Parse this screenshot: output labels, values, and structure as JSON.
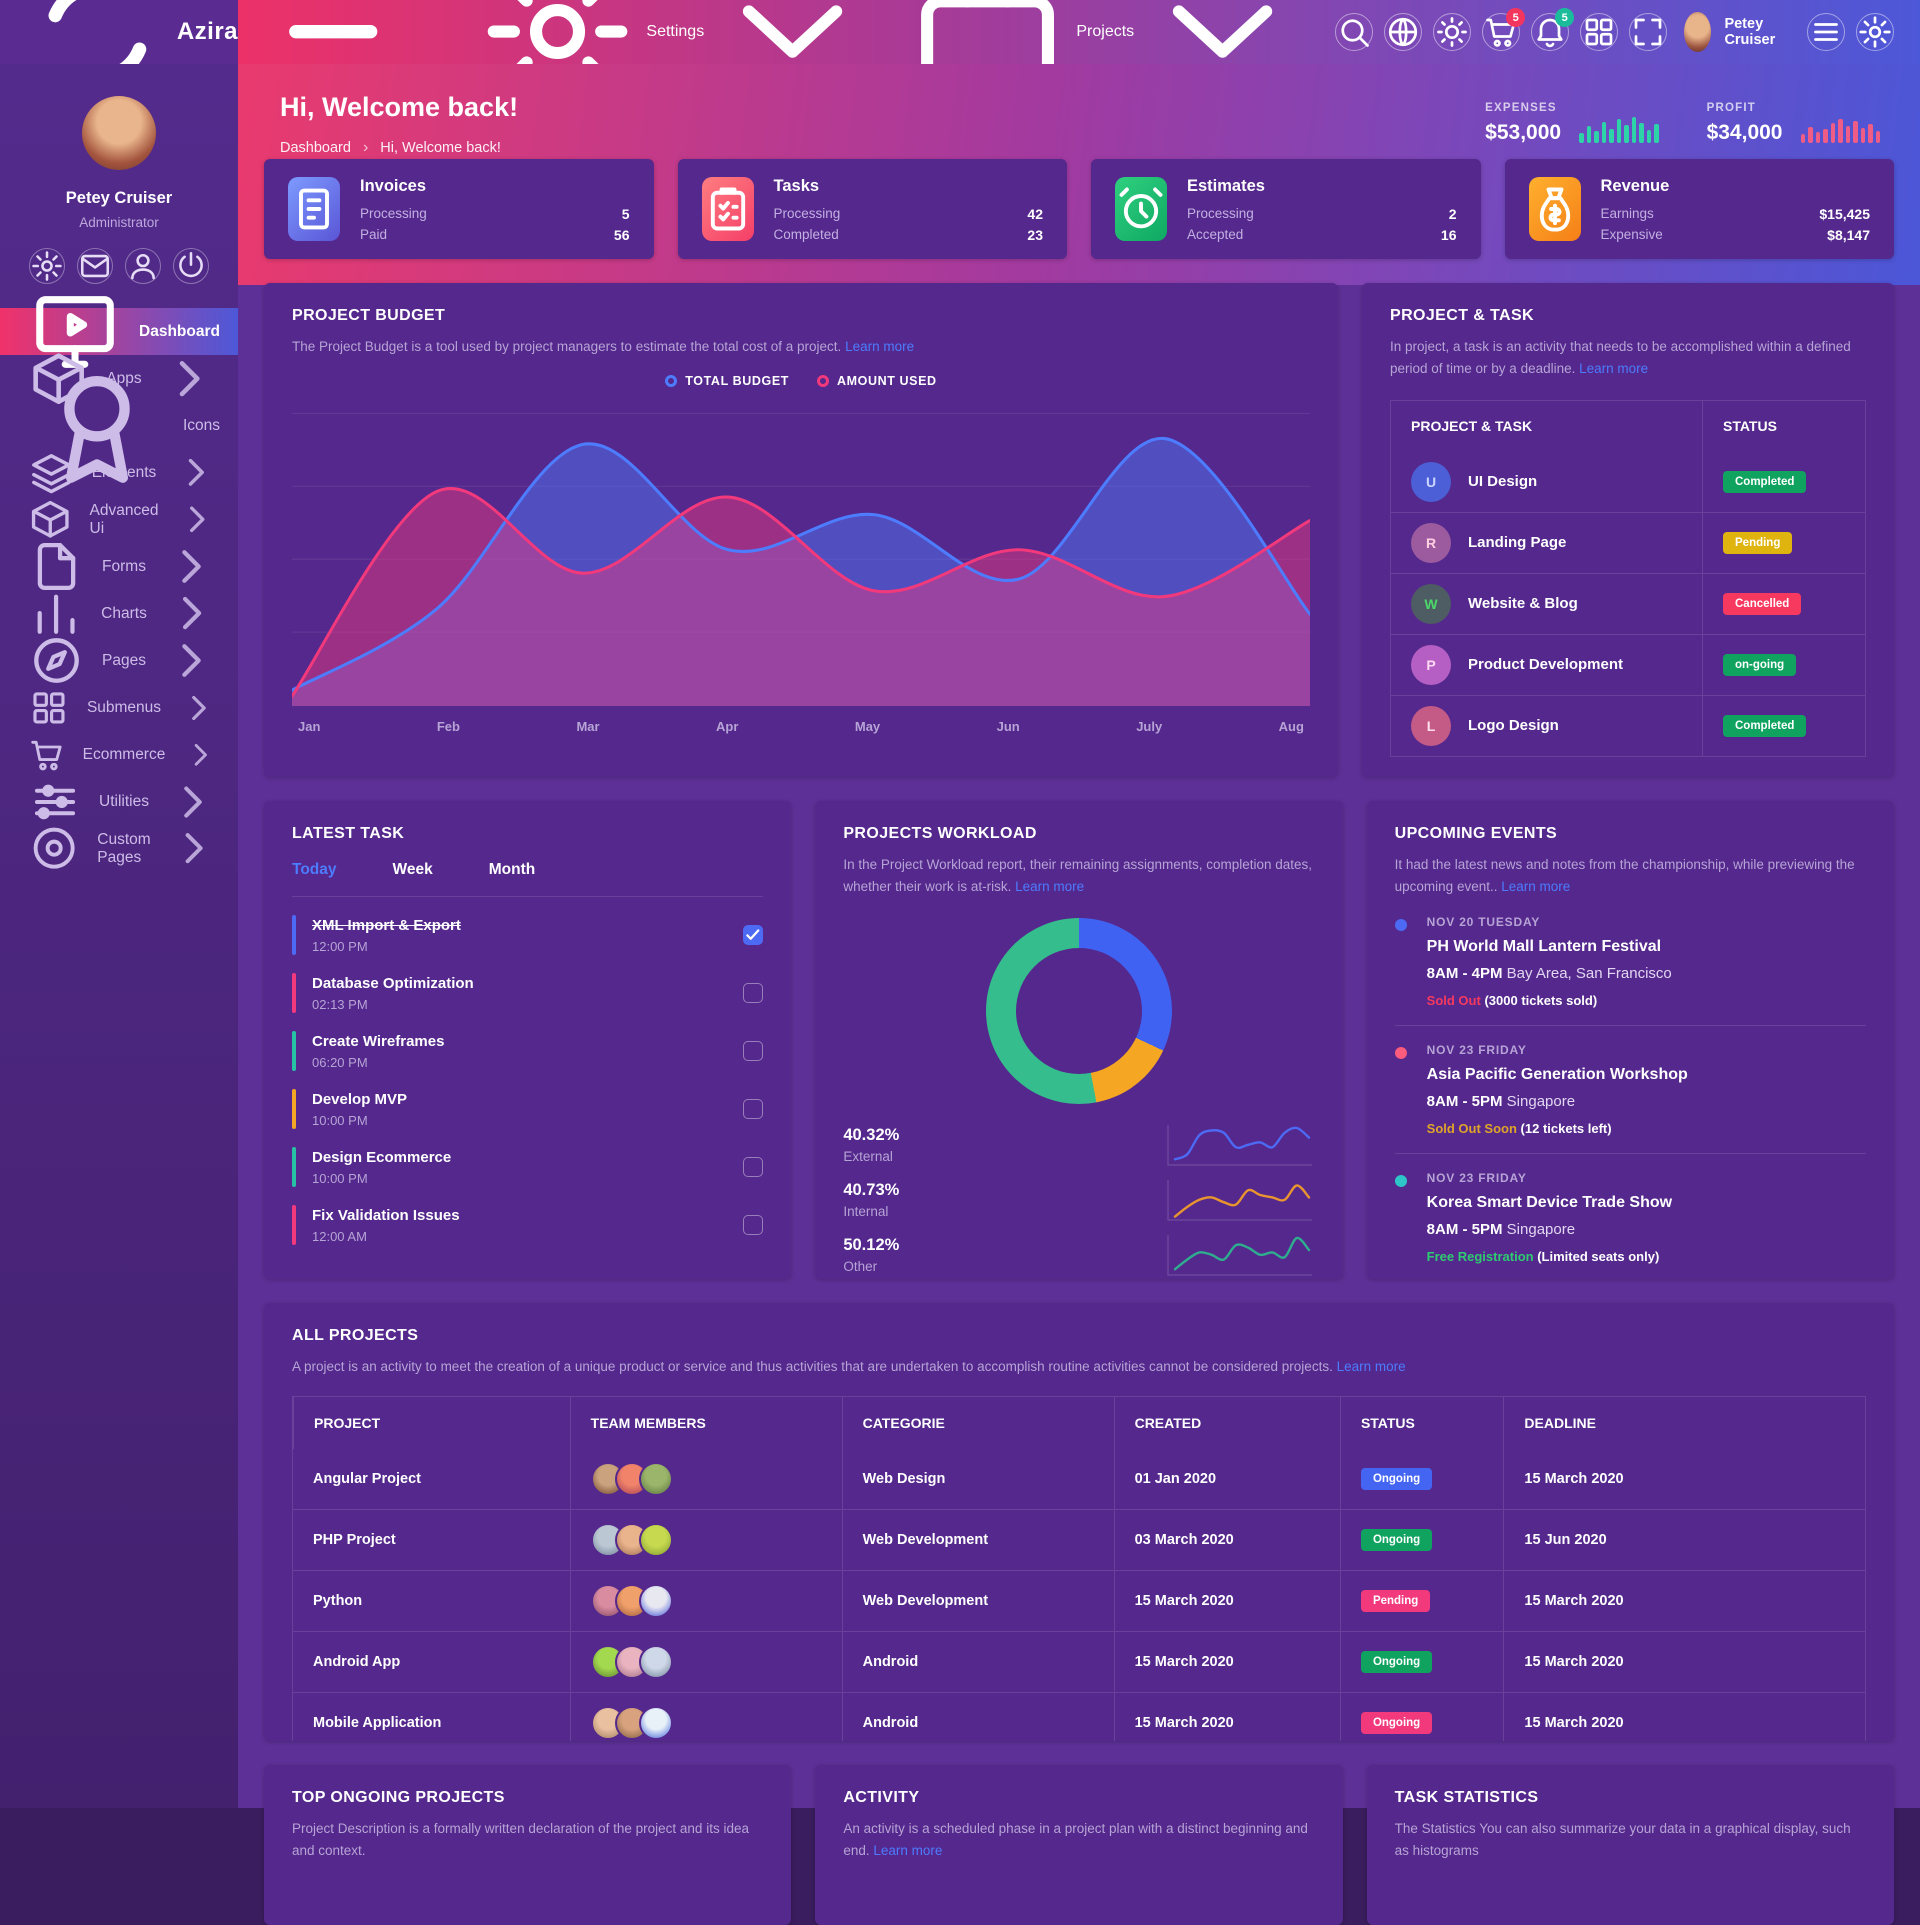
{
  "navbar": {
    "brand": "Azira",
    "menu": [
      {
        "label": "Settings",
        "icon": "gear"
      },
      {
        "label": "Projects",
        "icon": "briefcase"
      }
    ],
    "icons": [
      {
        "name": "search"
      },
      {
        "name": "globe"
      },
      {
        "name": "sun"
      },
      {
        "name": "cart",
        "badge": "5",
        "badge_color": "#f4365e"
      },
      {
        "name": "bell",
        "badge": "5",
        "badge_color": "#1abc9c"
      },
      {
        "name": "grid"
      },
      {
        "name": "fullscreen"
      }
    ],
    "user": {
      "name": "Petey Cruiser"
    },
    "trailing_icons": [
      {
        "name": "list"
      },
      {
        "name": "gear"
      }
    ]
  },
  "sidebar": {
    "profile": {
      "name": "Petey Cruiser",
      "role": "Administrator"
    },
    "quick_icons": [
      "gear",
      "mail",
      "user",
      "power"
    ],
    "items": [
      {
        "label": "Dashboard",
        "icon": "monitor",
        "active": true,
        "chevron": false
      },
      {
        "label": "Apps",
        "icon": "cube",
        "chevron": true
      },
      {
        "label": "Icons",
        "icon": "award",
        "chevron": false
      },
      {
        "label": "Elements",
        "icon": "layers",
        "chevron": true
      },
      {
        "label": "Advanced Ui",
        "icon": "cube",
        "chevron": true
      },
      {
        "label": "Forms",
        "icon": "file",
        "chevron": true
      },
      {
        "label": "Charts",
        "icon": "chart",
        "chevron": true
      },
      {
        "label": "Pages",
        "icon": "compass",
        "chevron": true
      },
      {
        "label": "Submenus",
        "icon": "grid",
        "chevron": true
      },
      {
        "label": "Ecommerce",
        "icon": "cart",
        "chevron": true
      },
      {
        "label": "Utilities",
        "icon": "sliders",
        "chevron": true
      },
      {
        "label": "Custom Pages",
        "icon": "disc",
        "chevron": true
      }
    ]
  },
  "hero": {
    "title": "Hi, Welcome back!",
    "breadcrumb": [
      "Dashboard",
      "Hi, Welcome back!"
    ],
    "breadcrumb_sep": "›",
    "stats": [
      {
        "label": "EXPENSES",
        "value": "$53,000",
        "color": "#2dd4a8",
        "bars": [
          10,
          17,
          12,
          21,
          14,
          24,
          18,
          26,
          20,
          13,
          19
        ]
      },
      {
        "label": "PROFIT",
        "value": "$34,000",
        "color": "#ef5d87",
        "bars": [
          9,
          16,
          11,
          14,
          20,
          24,
          17,
          22,
          15,
          19,
          12
        ]
      }
    ]
  },
  "stat_cards": [
    {
      "title": "Invoices",
      "icon": "invoice",
      "tile": "linear-gradient(135deg,#7d9bff,#5a55d6)",
      "row1_label": "Processing",
      "row1_value": "5",
      "row2_label": "Paid",
      "row2_value": "56"
    },
    {
      "title": "Tasks",
      "icon": "clipboard",
      "tile": "linear-gradient(135deg,#ff7d80,#f43f68)",
      "row1_label": "Processing",
      "row1_value": "42",
      "row2_label": "Completed",
      "row2_value": "23"
    },
    {
      "title": "Estimates",
      "icon": "alarm",
      "tile": "linear-gradient(135deg,#2fd07f,#0fa863)",
      "row1_label": "Processing",
      "row1_value": "2",
      "row2_label": "Accepted",
      "row2_value": "16"
    },
    {
      "title": "Revenue",
      "icon": "moneybag",
      "tile": "linear-gradient(135deg,#ffb02e,#f57f17)",
      "row1_label": "Earnings",
      "row1_value": "$15,425",
      "row2_label": "Expensive",
      "row2_value": "$8,147"
    }
  ],
  "project_budget": {
    "title": "PROJECT BUDGET",
    "desc": "The Project Budget is a tool used by project managers to estimate the total cost of a project.",
    "learn_more": "Learn more",
    "chart_data": {
      "type": "area",
      "x": [
        "Jan",
        "Feb",
        "Mar",
        "Apr",
        "May",
        "Jun",
        "July",
        "Aug"
      ],
      "series": [
        {
          "name": "TOTAL BUDGET",
          "color": "#4d7cfe",
          "values": [
            4,
            32,
            88,
            52,
            64,
            42,
            90,
            30
          ]
        },
        {
          "name": "AMOUNT USED",
          "color": "#f1397c",
          "values": [
            2,
            72,
            44,
            70,
            38,
            52,
            36,
            62
          ]
        }
      ]
    }
  },
  "project_task": {
    "title": "PROJECT & TASK",
    "desc": "In project, a task is an activity that needs to be accomplished within a defined period of time or by a deadline.",
    "learn_more": "Learn more",
    "col1": "PROJECT & TASK",
    "col2": "STATUS",
    "rows": [
      {
        "initial": "U",
        "avatar_bg": "#4c5fd6",
        "avatar_fg": "#cdd6ff",
        "name": "UI Design",
        "status": "Completed",
        "status_bg": "#10a360"
      },
      {
        "initial": "R",
        "avatar_bg": "#9c5b9e",
        "avatar_fg": "#ffd0e2",
        "name": "Landing Page",
        "status": "Pending",
        "status_bg": "#dfb40f"
      },
      {
        "initial": "W",
        "avatar_bg": "#4e5c63",
        "avatar_fg": "#4cd96a",
        "name": "Website & Blog",
        "status": "Cancelled",
        "status_bg": "#f8395f"
      },
      {
        "initial": "P",
        "avatar_bg": "#b55fc4",
        "avatar_fg": "#ffd9f2",
        "name": "Product Development",
        "status": "on-going",
        "status_bg": "#10a360"
      },
      {
        "initial": "L",
        "avatar_bg": "#c45a86",
        "avatar_fg": "#ffe0ec",
        "name": "Logo Design",
        "status": "Completed",
        "status_bg": "#10a360"
      }
    ]
  },
  "latest_task": {
    "title": "LATEST TASK",
    "tabs": [
      {
        "label": "Today",
        "active": true
      },
      {
        "label": "Week",
        "active": false
      },
      {
        "label": "Month",
        "active": false
      }
    ],
    "items": [
      {
        "name": "XML Import & Export",
        "time": "12:00 PM",
        "bar": "#4d6af5",
        "done": true
      },
      {
        "name": "Database Optimization",
        "time": "02:13 PM",
        "bar": "#f1397c",
        "done": false
      },
      {
        "name": "Create Wireframes",
        "time": "06:20 PM",
        "bar": "#27c2a5",
        "done": false
      },
      {
        "name": "Develop MVP",
        "time": "10:00 PM",
        "bar": "#f5a623",
        "done": false
      },
      {
        "name": "Design Ecommerce",
        "time": "10:00 PM",
        "bar": "#27c2a5",
        "done": false
      },
      {
        "name": "Fix Validation Issues",
        "time": "12:00 AM",
        "bar": "#f1397c",
        "done": false
      }
    ]
  },
  "workload": {
    "title": "PROJECTS WORKLOAD",
    "desc": "In the Project Workload report, their remaining assignments, completion dates, whether their work is at-risk.",
    "learn_more": "Learn more",
    "donut": {
      "segments": [
        {
          "color": "#3f62f2",
          "frac": 0.32
        },
        {
          "color": "#f5a623",
          "frac": 0.15
        },
        {
          "color": "#35bd8d",
          "frac": 0.53
        }
      ]
    },
    "stats": [
      {
        "pct": "40.32%",
        "label": "External",
        "color": "#4d6af5",
        "spark": [
          2,
          4,
          12,
          14,
          13,
          7,
          8,
          9,
          7,
          13,
          15,
          11
        ]
      },
      {
        "pct": "40.73%",
        "label": "Internal",
        "color": "#e8952f",
        "spark": [
          1,
          5,
          8,
          9,
          7,
          6,
          12,
          10,
          9,
          8,
          14,
          9
        ]
      },
      {
        "pct": "50.12%",
        "label": "Other",
        "color": "#2fae8f",
        "spark": [
          2,
          6,
          9,
          8,
          6,
          12,
          11,
          8,
          9,
          7,
          15,
          10
        ]
      }
    ]
  },
  "events": {
    "title": "UPCOMING EVENTS",
    "desc": "It had the latest news and notes from the championship, while previewing the upcoming event..",
    "learn_more": "Learn more",
    "items": [
      {
        "dot": "#4d6af5",
        "date": "NOV 20 TUESDAY",
        "name": "PH World Mall Lantern Festival",
        "time": "8AM - 4PM",
        "place": "Bay Area, San Francisco",
        "status": "Sold Out",
        "status_color": "#f8395f",
        "note": "(3000 tickets sold)"
      },
      {
        "dot": "#fb5b7c",
        "date": "NOV 23 FRIDAY",
        "name": "Asia Pacific Generation Workshop",
        "time": "8AM - 5PM",
        "place": "Singapore",
        "status": "Sold Out Soon",
        "status_color": "#dfa528",
        "note": "(12 tickets left)"
      },
      {
        "dot": "#2ec5c8",
        "date": "NOV 23 FRIDAY",
        "name": "Korea Smart Device Trade Show",
        "time": "8AM - 5PM",
        "place": "Singapore",
        "status": "Free Registration",
        "status_color": "#2ecc71",
        "note": "(Limited seats only)"
      }
    ]
  },
  "all_projects": {
    "title": "ALL PROJECTS",
    "desc": "A project is an activity to meet the creation of a unique product or service and thus activities that are undertaken to accomplish routine activities cannot be considered projects.",
    "learn_more": "Learn more",
    "columns": [
      "PROJECT",
      "TEAM MEMBERS",
      "CATEGORIE",
      "CREATED",
      "STATUS",
      "DEADLINE"
    ],
    "rows": [
      {
        "project": "Angular Project",
        "categorie": "Web Design",
        "created": "01 Jan 2020",
        "status": "Ongoing",
        "status_bg": "#4465f2",
        "deadline": "15 March 2020",
        "avatars": [
          [
            "#caa27e",
            "#6a4026"
          ],
          [
            "#f0836a",
            "#a33b52"
          ],
          [
            "#9bb56a",
            "#55713d"
          ]
        ]
      },
      {
        "project": "PHP Project",
        "categorie": "Web Development",
        "created": "03 March 2020",
        "status": "Ongoing",
        "status_bg": "#10a360",
        "deadline": "15 Jun 2020",
        "avatars": [
          [
            "#bcc7d4",
            "#6b7f94"
          ],
          [
            "#e9b38c",
            "#9c6b4f"
          ],
          [
            "#c6d94f",
            "#7f9a2e"
          ]
        ]
      },
      {
        "project": "Python",
        "categorie": "Web Development",
        "created": "15 March 2020",
        "status": "Pending",
        "status_bg": "#f1397c",
        "deadline": "15 March 2020",
        "avatars": [
          [
            "#d98ba0",
            "#7e4660"
          ],
          [
            "#f0a06a",
            "#9c5a3b"
          ],
          [
            "#e8e8f0",
            "#3b4fd8"
          ]
        ]
      },
      {
        "project": "Android App",
        "categorie": "Android",
        "created": "15 March 2020",
        "status": "Ongoing",
        "status_bg": "#10a360",
        "deadline": "15 March 2020",
        "avatars": [
          [
            "#a3d94f",
            "#5a7f2e"
          ],
          [
            "#e9b3c0",
            "#9c6b7f"
          ],
          [
            "#cfd8e8",
            "#6b7f94"
          ]
        ]
      },
      {
        "project": "Mobile Application",
        "categorie": "Android",
        "created": "15 March 2020",
        "status": "Ongoing",
        "status_bg": "#f1397c",
        "deadline": "15 March 2020",
        "avatars": [
          [
            "#e9c0a0",
            "#9c7b5a"
          ],
          [
            "#d9a27e",
            "#7a5a3b"
          ],
          [
            "#e8f0f8",
            "#3b5fd8"
          ]
        ]
      }
    ]
  },
  "bottom_cards": [
    {
      "title": "TOP ONGOING PROJECTS",
      "desc": "Project Description is a formally written declaration of the project and its idea and context.",
      "learn_more": ""
    },
    {
      "title": "ACTIVITY",
      "desc": "An activity is a scheduled phase in a project plan with a distinct beginning and end.",
      "learn_more": "Learn more"
    },
    {
      "title": "TASK STATISTICS",
      "desc": "The Statistics You can also summarize your data in a graphical display, such as histograms",
      "learn_more": ""
    }
  ]
}
